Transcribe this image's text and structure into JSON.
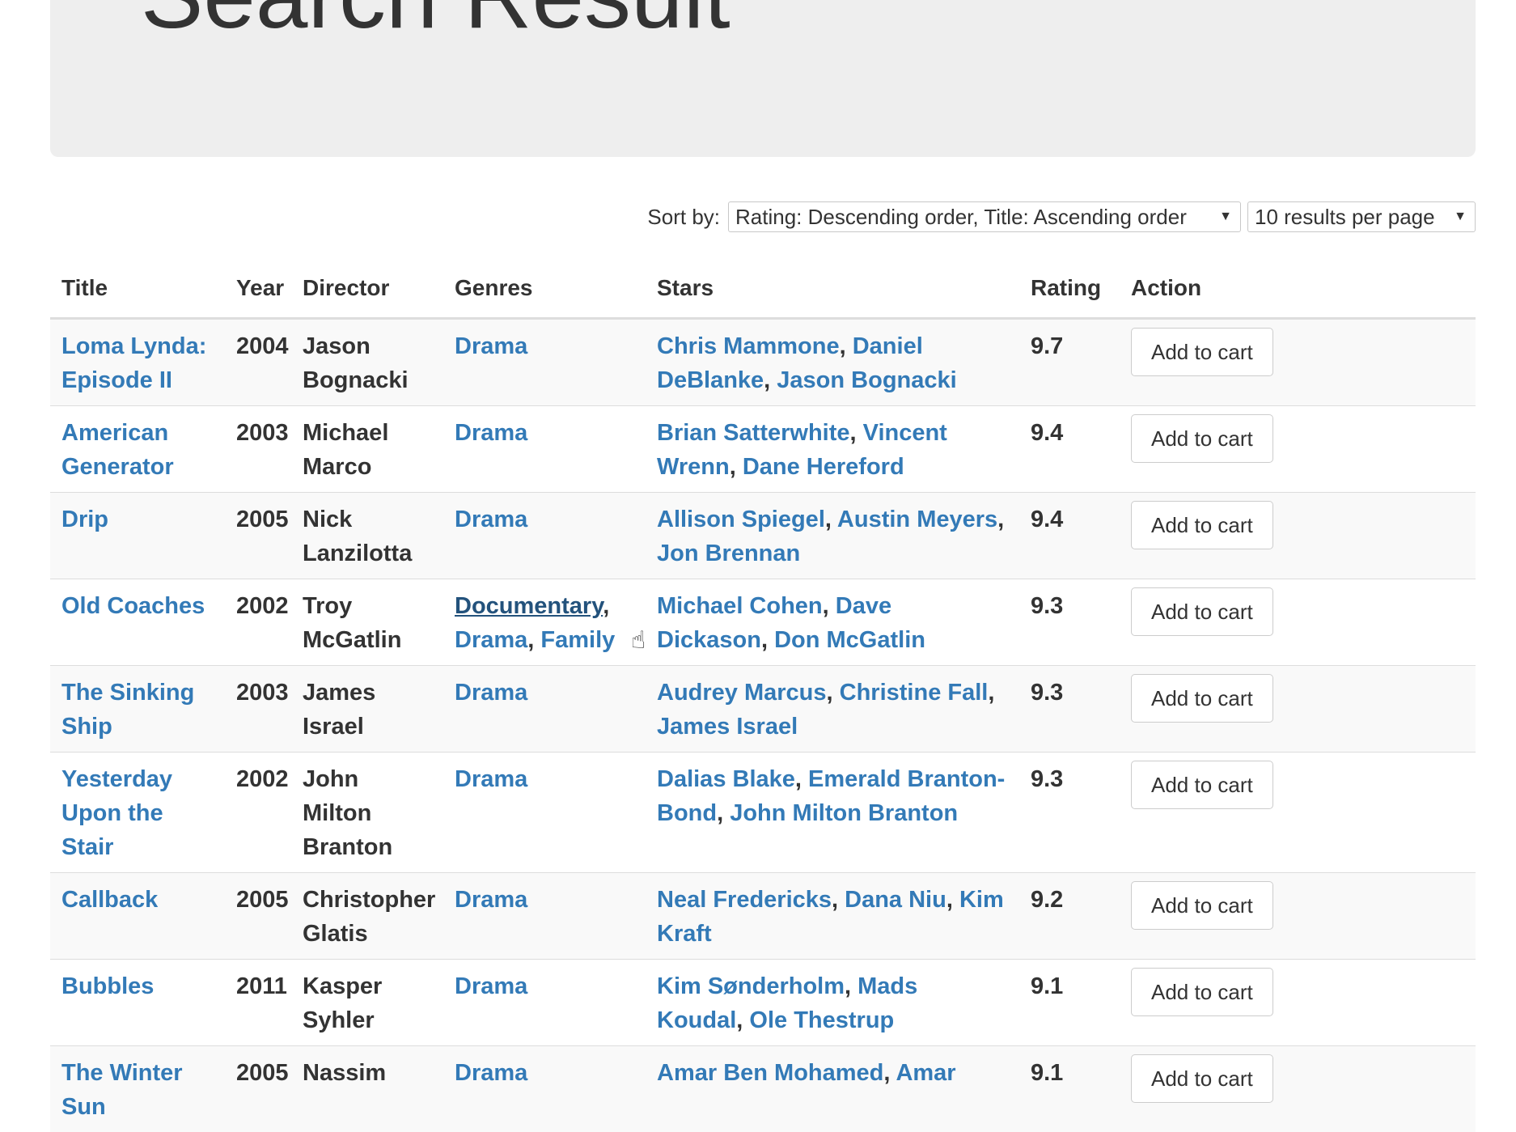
{
  "page": {
    "title": "Search Result"
  },
  "sort": {
    "label": "Sort by:",
    "order_value": "Rating: Descending order, Title: Ascending order",
    "per_page_value": "10 results per page"
  },
  "table": {
    "headers": [
      "Title",
      "Year",
      "Director",
      "Genres",
      "Stars",
      "Rating",
      "Action"
    ],
    "action_label": "Add to cart",
    "rows": [
      {
        "title": "Loma Lynda: Episode II",
        "year": "2004",
        "director": "Jason Bognacki",
        "genres": [
          "Drama"
        ],
        "stars": [
          "Chris Mammone",
          "Daniel DeBlanke",
          "Jason Bognacki"
        ],
        "rating": "9.7"
      },
      {
        "title": "American Generator",
        "year": "2003",
        "director": "Michael Marco",
        "genres": [
          "Drama"
        ],
        "stars": [
          "Brian Satterwhite",
          "Vincent Wrenn",
          "Dane Hereford"
        ],
        "rating": "9.4"
      },
      {
        "title": "Drip",
        "year": "2005",
        "director": "Nick Lanzilotta",
        "genres": [
          "Drama"
        ],
        "stars": [
          "Allison Spiegel",
          "Austin Meyers",
          "Jon Brennan"
        ],
        "rating": "9.4"
      },
      {
        "title": "Old Coaches",
        "year": "2002",
        "director": "Troy McGatlin",
        "genres": [
          "Documentary",
          "Drama",
          "Family"
        ],
        "stars": [
          "Michael Cohen",
          "Dave Dickason",
          "Don McGatlin"
        ],
        "rating": "9.3"
      },
      {
        "title": "The Sinking Ship",
        "year": "2003",
        "director": "James Israel",
        "genres": [
          "Drama"
        ],
        "stars": [
          "Audrey Marcus",
          "Christine Fall",
          "James Israel"
        ],
        "rating": "9.3"
      },
      {
        "title": "Yesterday Upon the Stair",
        "year": "2002",
        "director": "John Milton Branton",
        "genres": [
          "Drama"
        ],
        "stars": [
          "Dalias Blake",
          "Emerald Branton-Bond",
          "John Milton Branton"
        ],
        "rating": "9.3"
      },
      {
        "title": "Callback",
        "year": "2005",
        "director": "Christopher Glatis",
        "genres": [
          "Drama"
        ],
        "stars": [
          "Neal Fredericks",
          "Dana Niu",
          "Kim Kraft"
        ],
        "rating": "9.2"
      },
      {
        "title": "Bubbles",
        "year": "2011",
        "director": "Kasper Syhler",
        "genres": [
          "Drama"
        ],
        "stars": [
          "Kim Sønderholm",
          "Mads Koudal",
          "Ole Thestrup"
        ],
        "rating": "9.1"
      },
      {
        "title": "The Winter Sun",
        "year": "2005",
        "director": "Nassim",
        "genres": [
          "Drama"
        ],
        "stars": [
          "Amar Ben Mohamed",
          "Amar"
        ],
        "rating": "9.1"
      }
    ]
  },
  "hovered_genre": "Documentary"
}
